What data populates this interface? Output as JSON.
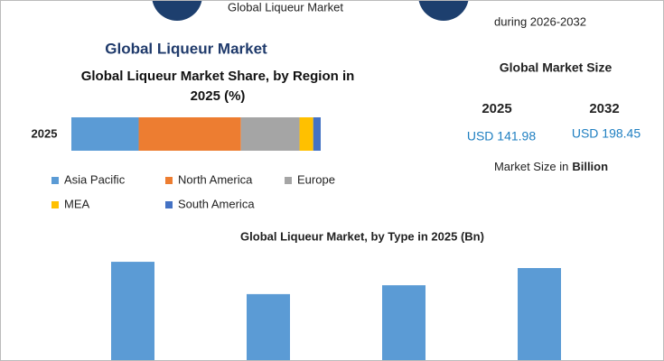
{
  "header": {
    "left_text": "Global Liqueur Market",
    "right_text": "during 2026-2032"
  },
  "title": "Global Liqueur Market",
  "chart_data": [
    {
      "type": "bar",
      "orientation": "horizontal",
      "stacked": true,
      "title": "Global Liqueur Market Share, by Region in 2025 (%)",
      "categories": [
        "2025"
      ],
      "xlim": [
        0,
        100
      ],
      "series": [
        {
          "name": "Asia Pacific",
          "color": "#5b9bd5",
          "values": [
            27
          ]
        },
        {
          "name": "North America",
          "color": "#ed7d31",
          "values": [
            41
          ]
        },
        {
          "name": "Europe",
          "color": "#a5a5a5",
          "values": [
            23.5
          ]
        },
        {
          "name": "MEA",
          "color": "#ffc000",
          "values": [
            5.5
          ]
        },
        {
          "name": "South America",
          "color": "#4472c4",
          "values": [
            3
          ]
        }
      ]
    },
    {
      "type": "bar",
      "title": "Global Liqueur Market, by Type in 2025 (Bn)",
      "categories": [
        null,
        null,
        null,
        null
      ],
      "values": [
        38.4,
        26,
        29.4,
        36
      ],
      "color": "#5b9bd5",
      "ylim": [
        0,
        45
      ]
    }
  ],
  "market_size": {
    "title": "Global Market Size",
    "items": [
      {
        "year": "2025",
        "value": "USD 141.98"
      },
      {
        "year": "2032",
        "value": "USD 198.45"
      }
    ],
    "note": "Market Size in",
    "note_bold": "Billion"
  }
}
